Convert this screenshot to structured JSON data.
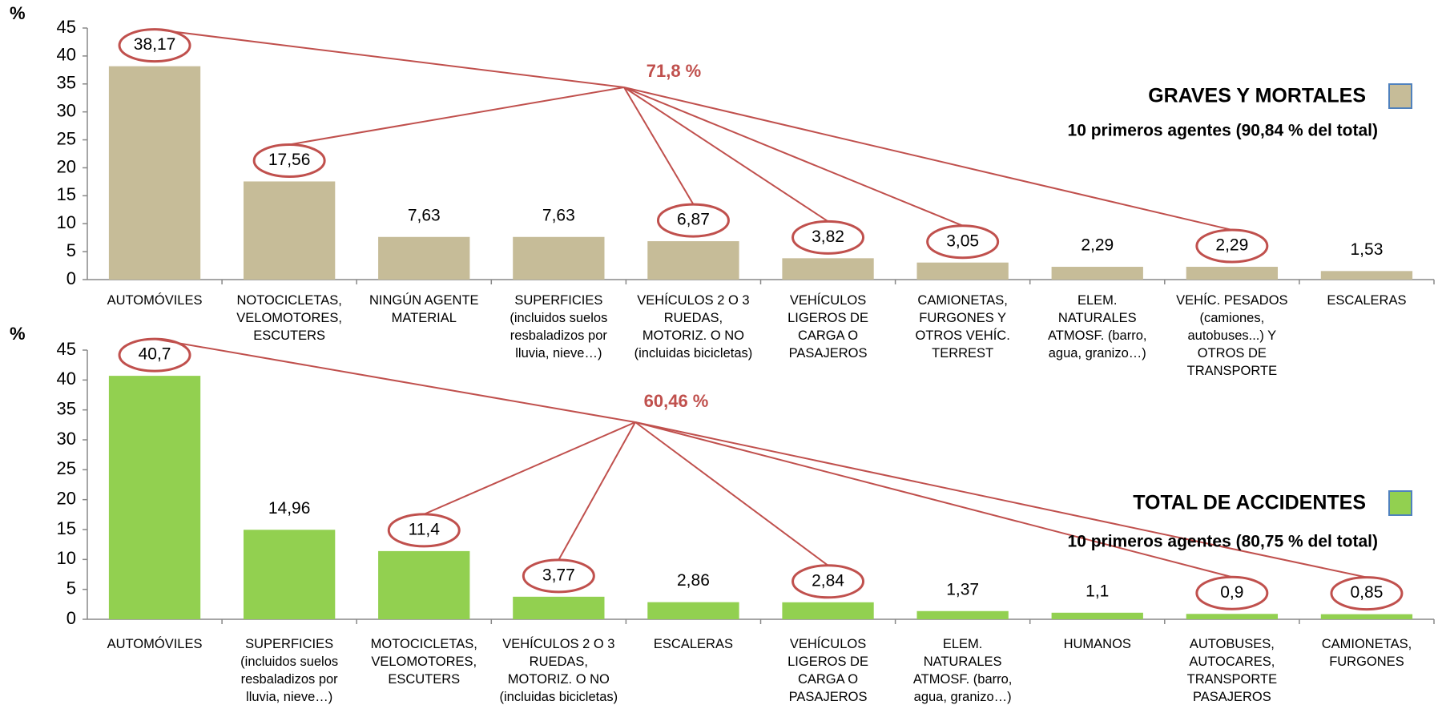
{
  "chart_data": [
    {
      "type": "bar",
      "ylabel": "%",
      "annotation": "71,8 %",
      "legend_title": "GRAVES Y MORTALES",
      "legend_subtitle": "10 primeros agentes (90,84 % del total)",
      "color": "#c6bc98",
      "categories": [
        "AUTOMÓVILES",
        "NOTOCICLETAS,\nVELOMOTORES,\nESCUTERS",
        "NINGÚN AGENTE\nMATERIAL",
        "SUPERFICIES\n(incluidos suelos\nresbaladizos por\nlluvia, nieve…)",
        "VEHÍCULOS 2 O 3\nRUEDAS,\nMOTORIZ. O NO\n(incluidas bicicletas)",
        "VEHÍCULOS\nLIGEROS DE\nCARGA O\nPASAJEROS",
        "CAMIONETAS,\nFURGONES Y\nOTROS VEHÍC.\nTERREST",
        "ELEM.\nNATURALES\nATMOSF. (barro,\nagua, granizo…)",
        "VEHÍC. PESADOS\n(camiones,\nautobuses...) Y\nOTROS DE\nTRANSPORTE",
        "ESCALERAS"
      ],
      "values": [
        38.17,
        17.56,
        7.63,
        7.63,
        6.87,
        3.82,
        3.05,
        2.29,
        2.29,
        1.53
      ],
      "value_labels": [
        "38,17",
        "17,56",
        "7,63",
        "7,63",
        "6,87",
        "3,82",
        "3,05",
        "2,29",
        "2,29",
        "1,53"
      ],
      "highlighted": [
        0,
        1,
        4,
        5,
        6,
        8
      ],
      "ylim": [
        0,
        45
      ],
      "yticks": [
        0,
        5,
        10,
        15,
        20,
        25,
        30,
        35,
        40,
        45
      ]
    },
    {
      "type": "bar",
      "ylabel": "%",
      "annotation": "60,46 %",
      "legend_title": "TOTAL DE ACCIDENTES",
      "legend_subtitle": "10 primeros agentes (80,75 % del total)",
      "color": "#92d050",
      "categories": [
        "AUTOMÓVILES",
        "SUPERFICIES\n(incluidos suelos\nresbaladizos por\nlluvia, nieve…)",
        "MOTOCICLETAS,\nVELOMOTORES,\nESCUTERS",
        "VEHÍCULOS 2 O 3\nRUEDAS,\nMOTORIZ. O NO\n(incluidas bicicletas)",
        "ESCALERAS",
        "VEHÍCULOS\nLIGEROS DE\nCARGA O\nPASAJEROS",
        "ELEM.\nNATURALES\nATMOSF. (barro,\nagua, granizo…)",
        "HUMANOS",
        "AUTOBUSES,\nAUTOCARES,\nTRANSPORTE\nPASAJEROS",
        "CAMIONETAS,\nFURGONES"
      ],
      "values": [
        40.7,
        14.96,
        11.4,
        3.77,
        2.86,
        2.84,
        1.37,
        1.1,
        0.9,
        0.85
      ],
      "value_labels": [
        "40,7",
        "14,96",
        "11,4",
        "3,77",
        "2,86",
        "2,84",
        "1,37",
        "1,1",
        "0,9",
        "0,85"
      ],
      "highlighted": [
        0,
        2,
        3,
        5,
        8,
        9
      ],
      "ylim": [
        0,
        45
      ],
      "yticks": [
        0,
        5,
        10,
        15,
        20,
        25,
        30,
        35,
        40,
        45
      ]
    }
  ]
}
